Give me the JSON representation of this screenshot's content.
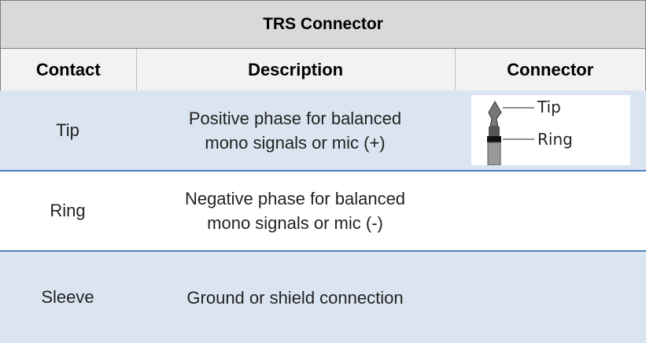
{
  "table": {
    "title": "TRS Connector",
    "headers": [
      "Contact",
      "Description",
      "Connector"
    ],
    "rows": [
      [
        "Tip",
        "Positive phase for balanced mono signals or mic (+)"
      ],
      [
        "Ring",
        "Negative phase for balanced mono signals or mic (-)"
      ],
      [
        "Sleeve",
        "Ground or shield connection"
      ]
    ],
    "connector_labels": [
      "Tip",
      "Ring"
    ]
  }
}
